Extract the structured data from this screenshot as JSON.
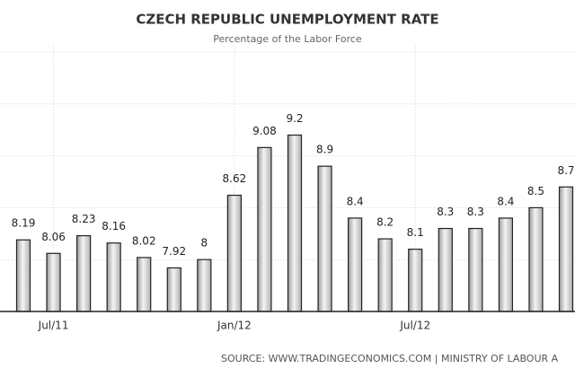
{
  "chart_data": {
    "type": "bar",
    "title": "CZECH REPUBLIC UNEMPLOYMENT RATE",
    "subtitle": "Percentage of the Labor Force",
    "source": "SOURCE: WWW.TRADINGECONOMICS.COM | MINISTRY OF LABOUR A",
    "categories": [
      null,
      "Jul/11",
      null,
      null,
      null,
      null,
      null,
      "Jan/12",
      null,
      null,
      null,
      null,
      null,
      "Jul/12",
      null,
      null,
      null,
      null,
      null
    ],
    "values": [
      8.19,
      8.06,
      8.23,
      8.16,
      8.02,
      7.92,
      8,
      8.62,
      9.08,
      9.2,
      8.9,
      8.4,
      8.2,
      8.1,
      8.3,
      8.3,
      8.4,
      8.5,
      8.7
    ],
    "ylim": [
      7.5,
      10
    ],
    "yticks": [
      7.5,
      8,
      8.5,
      9,
      9.5,
      10
    ],
    "grid": true,
    "color": "#c8c8c8"
  }
}
